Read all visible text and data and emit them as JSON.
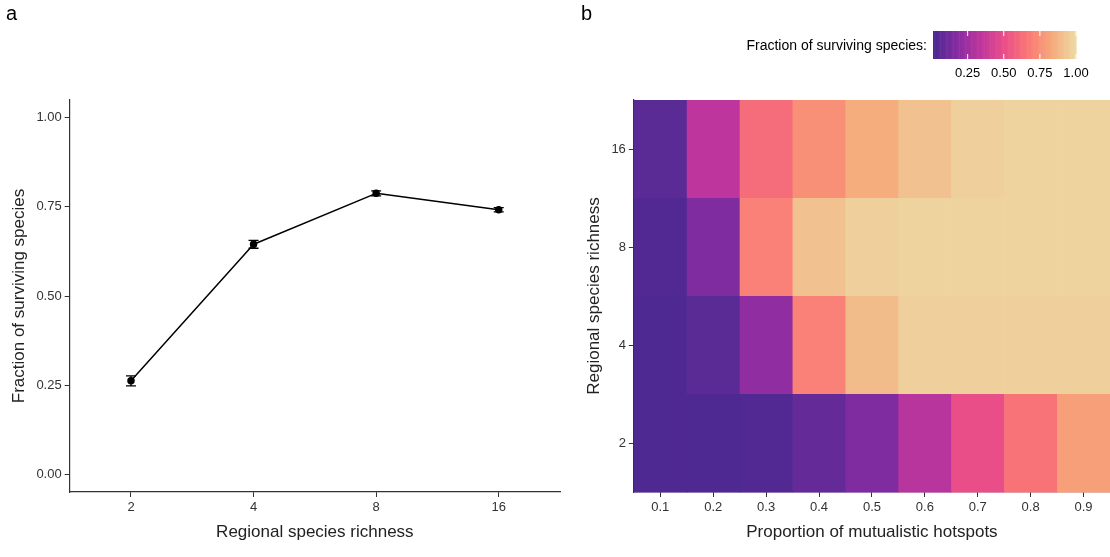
{
  "chart_data": [
    {
      "type": "line",
      "title": "a",
      "xlabel": "Regional species richness",
      "ylabel": "Fraction of surviving species",
      "categories": [
        "2",
        "4",
        "8",
        "16"
      ],
      "series": [
        {
          "color": "#000000",
          "values": [
            0.262,
            0.645,
            0.788,
            0.742
          ],
          "errors": [
            0.014,
            0.011,
            0.007,
            0.006
          ]
        }
      ],
      "ylim": [
        -0.05,
        1.05
      ],
      "yticks": [
        {
          "value": 0,
          "label": "0.00"
        },
        {
          "value": 0.25,
          "label": "0.25"
        },
        {
          "value": 0.5,
          "label": "0.50"
        },
        {
          "value": 0.75,
          "label": "0.75"
        },
        {
          "value": 1,
          "label": "1.00"
        }
      ],
      "grid": false,
      "legend": false,
      "marker": "circle",
      "line_style": "solid"
    },
    {
      "type": "heatmap",
      "title": "b",
      "xlabel": "Proportion of mutualistic hotspots",
      "ylabel": "Regional species richness",
      "clabel": "Fraction of surviving species:",
      "categories": [
        "0.1",
        "0.2",
        "0.3",
        "0.4",
        "0.5",
        "0.6",
        "0.7",
        "0.8",
        "0.9"
      ],
      "y_categories": [
        "16",
        "8",
        "4",
        "2"
      ],
      "cells": [
        [
          0.05,
          0.33,
          0.62,
          0.75,
          0.85,
          0.92,
          0.97,
          0.98,
          0.98
        ],
        [
          0.03,
          0.15,
          0.7,
          0.92,
          0.97,
          0.98,
          0.98,
          0.98,
          0.98
        ],
        [
          0.02,
          0.05,
          0.2,
          0.7,
          0.9,
          0.97,
          0.97,
          0.97,
          0.97
        ],
        [
          0.02,
          0.02,
          0.03,
          0.08,
          0.15,
          0.32,
          0.5,
          0.65,
          0.8
        ]
      ],
      "clim": [
        0.01,
        1.0
      ],
      "cticks": [
        {
          "value": 0.25,
          "label": "0.25"
        },
        {
          "value": 0.5,
          "label": "0.50"
        },
        {
          "value": 0.75,
          "label": "0.75"
        },
        {
          "value": 1,
          "label": "1.00"
        }
      ],
      "grid": false
    }
  ]
}
